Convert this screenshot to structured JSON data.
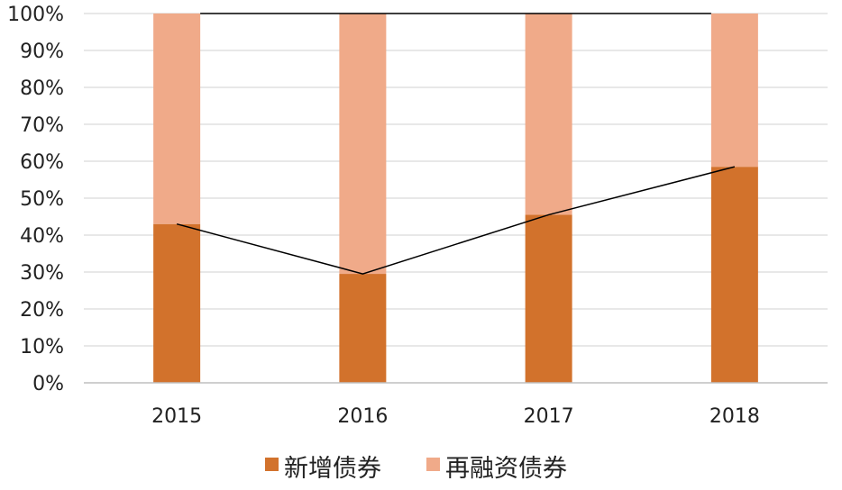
{
  "chart_data": {
    "type": "bar",
    "stacked": true,
    "percent_stacked": true,
    "categories": [
      "2015",
      "2016",
      "2017",
      "2018"
    ],
    "series": [
      {
        "name": "新增债券",
        "values": [
          43,
          29.5,
          45.5,
          58.5
        ],
        "color": "#d2722c"
      },
      {
        "name": "再融资债券",
        "values": [
          57,
          70.5,
          54.5,
          41.5
        ],
        "color": "#f0aa89"
      }
    ],
    "overlay_line": {
      "values": [
        43,
        29.5,
        45.5,
        58.5
      ],
      "color": "#000000"
    },
    "y_tick_labels": [
      "0%",
      "10%",
      "20%",
      "30%",
      "40%",
      "50%",
      "60%",
      "70%",
      "80%",
      "90%",
      "100%"
    ],
    "ylim": [
      0,
      100
    ],
    "grid": true,
    "legend_position": "bottom-center"
  }
}
